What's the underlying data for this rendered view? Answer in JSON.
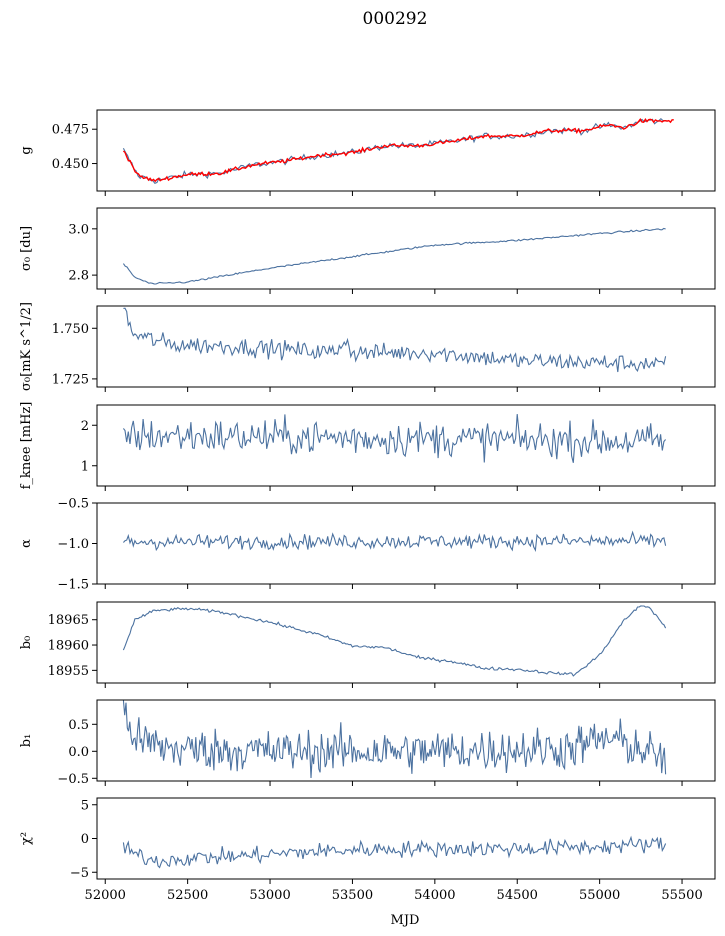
{
  "figure": {
    "title": "000292",
    "xlabel": "MJD",
    "xlim": [
      51950,
      55700
    ],
    "xticks": [
      52000,
      52500,
      53000,
      53500,
      54000,
      54500,
      55000,
      55500
    ]
  },
  "colors": {
    "series": "#4c72a0",
    "fit": "#ff0000",
    "axes": "#000000",
    "background": "#ffffff"
  },
  "chart_data": [
    {
      "id": "g",
      "type": "line",
      "ylabel": "g",
      "ylim": [
        0.43,
        0.489
      ],
      "yticks": [
        0.45,
        0.475
      ],
      "ytick_labels": [
        "0.450",
        "0.475"
      ],
      "series": [
        {
          "color": "#4c72a0",
          "x_start": 52110,
          "x_end": 55410,
          "points": 260,
          "noise": 0.0012,
          "shape": "g"
        },
        {
          "color": "#ff0000",
          "x_start": 52110,
          "x_end": 55450,
          "points": 330,
          "noise": 0.0007,
          "shape": "g"
        }
      ],
      "keypoints": [
        [
          52110,
          0.46
        ],
        [
          52200,
          0.441
        ],
        [
          52300,
          0.4375
        ],
        [
          52500,
          0.442
        ],
        [
          52700,
          0.443
        ],
        [
          52900,
          0.449
        ],
        [
          53100,
          0.452
        ],
        [
          53300,
          0.456
        ],
        [
          53500,
          0.458
        ],
        [
          53700,
          0.463
        ],
        [
          53900,
          0.463
        ],
        [
          54100,
          0.466
        ],
        [
          54300,
          0.47
        ],
        [
          54500,
          0.47
        ],
        [
          54700,
          0.474
        ],
        [
          54900,
          0.474
        ],
        [
          55050,
          0.478
        ],
        [
          55150,
          0.476
        ],
        [
          55250,
          0.481
        ],
        [
          55450,
          0.481
        ]
      ]
    },
    {
      "id": "sigma0_du",
      "type": "line",
      "ylabel": "σ₀ [du]",
      "ylim": [
        2.74,
        3.09
      ],
      "yticks": [
        2.8,
        3.0
      ],
      "ytick_labels": [
        "2.8",
        "3.0"
      ],
      "series": [
        {
          "color": "#4c72a0",
          "x_start": 52110,
          "x_end": 55400,
          "points": 300,
          "noise": 0.002
        }
      ],
      "keypoints": [
        [
          52110,
          2.85
        ],
        [
          52180,
          2.79
        ],
        [
          52280,
          2.762
        ],
        [
          52500,
          2.77
        ],
        [
          53000,
          2.83
        ],
        [
          53500,
          2.88
        ],
        [
          54000,
          2.93
        ],
        [
          54500,
          2.95
        ],
        [
          55000,
          2.98
        ],
        [
          55400,
          3.0
        ]
      ]
    },
    {
      "id": "sigma0_mks",
      "type": "line",
      "ylabel": "σ₀[mK s^1/2]",
      "ylim": [
        1.721,
        1.761
      ],
      "yticks": [
        1.725,
        1.75
      ],
      "ytick_labels": [
        "1.725",
        "1.750"
      ],
      "series": [
        {
          "color": "#4c72a0",
          "x_start": 52110,
          "x_end": 55400,
          "points": 330,
          "noise": 0.0022
        }
      ],
      "keypoints": [
        [
          52110,
          1.76
        ],
        [
          52170,
          1.747
        ],
        [
          52400,
          1.742
        ],
        [
          52800,
          1.741
        ],
        [
          53400,
          1.738
        ],
        [
          53450,
          1.745
        ],
        [
          53500,
          1.738
        ],
        [
          54000,
          1.738
        ],
        [
          54500,
          1.734
        ],
        [
          55000,
          1.733
        ],
        [
          55400,
          1.732
        ]
      ]
    },
    {
      "id": "fknee",
      "type": "line",
      "ylabel": "f_knee [mHz]",
      "ylim": [
        0.5,
        2.5
      ],
      "yticks": [
        1,
        2
      ],
      "ytick_labels": [
        "1",
        "2"
      ],
      "series": [
        {
          "color": "#4c72a0",
          "x_start": 52110,
          "x_end": 55400,
          "points": 330,
          "noise": 0.22
        }
      ],
      "keypoints": [
        [
          52110,
          1.75
        ],
        [
          55400,
          1.6
        ]
      ]
    },
    {
      "id": "alpha",
      "type": "line",
      "ylabel": "α",
      "ylim": [
        -1.5,
        -0.5
      ],
      "yticks": [
        -1.5,
        -1.0,
        -0.5
      ],
      "ytick_labels": [
        "−1.5",
        "−1.0",
        "−0.5"
      ],
      "series": [
        {
          "color": "#4c72a0",
          "x_start": 52110,
          "x_end": 55400,
          "points": 330,
          "noise": 0.045
        }
      ],
      "keypoints": [
        [
          52110,
          -0.98
        ],
        [
          55400,
          -0.97
        ]
      ]
    },
    {
      "id": "b0",
      "type": "line",
      "ylabel": "b₀",
      "ylim": [
        18952.5,
        18968.5
      ],
      "yticks": [
        18955,
        18960,
        18965
      ],
      "ytick_labels": [
        "18955",
        "18960",
        "18965"
      ],
      "series": [
        {
          "color": "#4c72a0",
          "x_start": 52110,
          "x_end": 55400,
          "points": 330,
          "noise": 0.15
        }
      ],
      "keypoints": [
        [
          52110,
          18959
        ],
        [
          52180,
          18965
        ],
        [
          52300,
          18966.8
        ],
        [
          52500,
          18967.2
        ],
        [
          52700,
          18966.5
        ],
        [
          53000,
          18964.5
        ],
        [
          53300,
          18962
        ],
        [
          53500,
          18959.8
        ],
        [
          53700,
          18959.5
        ],
        [
          53900,
          18957.5
        ],
        [
          54100,
          18956.8
        ],
        [
          54300,
          18955.4
        ],
        [
          54500,
          18955.2
        ],
        [
          54700,
          18954.5
        ],
        [
          54850,
          18954.2
        ],
        [
          55000,
          18958
        ],
        [
          55150,
          18965
        ],
        [
          55250,
          18967.8
        ],
        [
          55300,
          18967.5
        ],
        [
          55400,
          18963.5
        ]
      ]
    },
    {
      "id": "b1",
      "type": "line",
      "ylabel": "b₁",
      "ylim": [
        -0.55,
        0.95
      ],
      "yticks": [
        -0.5,
        0.0,
        0.5
      ],
      "ytick_labels": [
        "−0.5",
        "0.0",
        "0.5"
      ],
      "series": [
        {
          "color": "#4c72a0",
          "x_start": 52110,
          "x_end": 55400,
          "points": 420,
          "noise": 0.2
        }
      ],
      "keypoints": [
        [
          52110,
          0.75
        ],
        [
          52140,
          0.5
        ],
        [
          52200,
          0.2
        ],
        [
          52400,
          0.05
        ],
        [
          53000,
          0.0
        ],
        [
          54000,
          0.0
        ],
        [
          54800,
          0.05
        ],
        [
          55050,
          0.25
        ],
        [
          55200,
          0.1
        ],
        [
          55400,
          -0.15
        ]
      ]
    },
    {
      "id": "chi2",
      "type": "line",
      "ylabel": "χ²",
      "ylim": [
        -6,
        6
      ],
      "yticks": [
        -5,
        0,
        5
      ],
      "ytick_labels": [
        "−5",
        "0",
        "5"
      ],
      "series": [
        {
          "color": "#4c72a0",
          "x_start": 52110,
          "x_end": 55400,
          "points": 330,
          "noise": 0.6
        }
      ],
      "keypoints": [
        [
          52110,
          -1.5
        ],
        [
          52200,
          -2.5
        ],
        [
          52300,
          -3.3
        ],
        [
          52600,
          -2.8
        ],
        [
          52900,
          -2.5
        ],
        [
          53200,
          -2.0
        ],
        [
          53600,
          -1.6
        ],
        [
          54000,
          -1.5
        ],
        [
          54500,
          -1.5
        ],
        [
          55000,
          -1.2
        ],
        [
          55400,
          -0.8
        ]
      ]
    }
  ]
}
